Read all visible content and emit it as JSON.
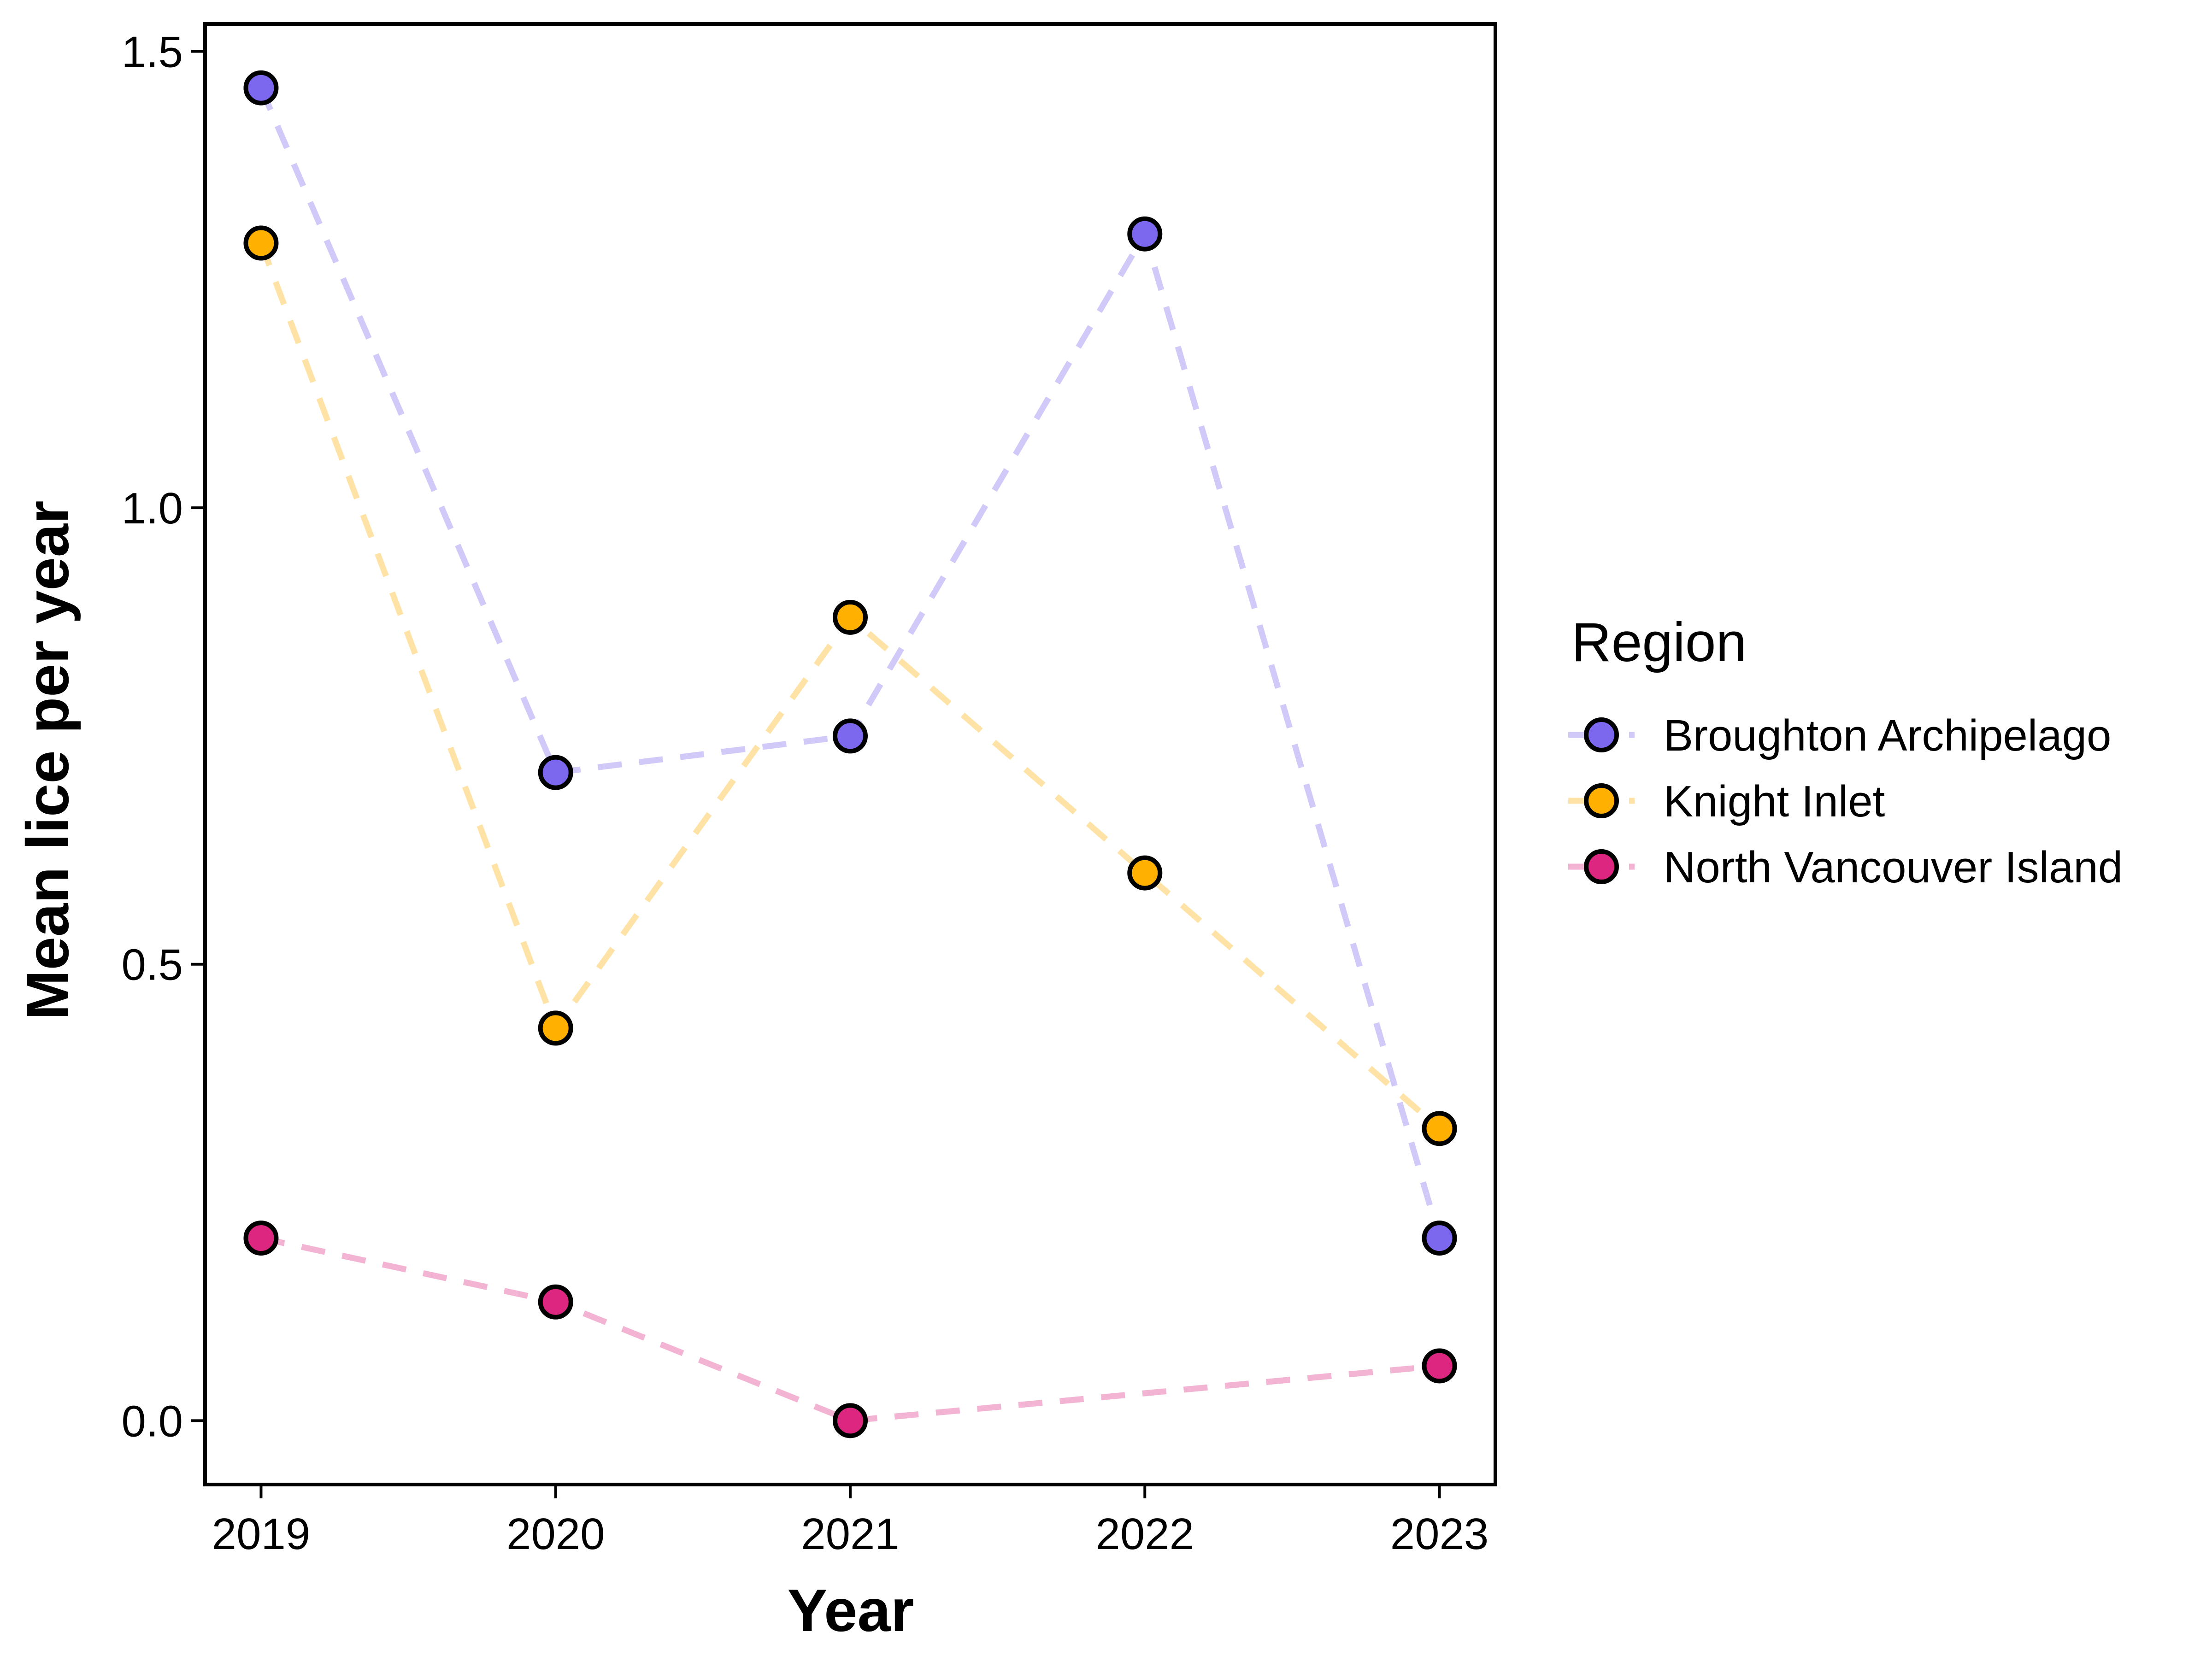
{
  "chart_data": {
    "type": "line",
    "xlabel": "Year",
    "ylabel": "Mean lice per year",
    "x": [
      2019,
      2020,
      2021,
      2022,
      2023
    ],
    "xticks": [
      "2019",
      "2020",
      "2021",
      "2022",
      "2023"
    ],
    "yticks": [
      "0.0",
      "0.5",
      "1.0",
      "1.5"
    ],
    "ylim": [
      -0.07,
      1.53
    ],
    "legend": {
      "title": "Region",
      "placement": "right"
    },
    "line_style": "dashed",
    "markers": "circle",
    "series": [
      {
        "name": "Broughton Archipelago",
        "color": "#7B68EE",
        "values": [
          1.46,
          0.71,
          0.75,
          1.3,
          0.2
        ]
      },
      {
        "name": "Knight Inlet",
        "color": "#FFB000",
        "values": [
          1.29,
          0.43,
          0.88,
          0.6,
          0.32
        ]
      },
      {
        "name": "North Vancouver Island",
        "color": "#DC267F",
        "values": [
          0.2,
          0.13,
          0.0,
          null,
          0.06
        ]
      }
    ]
  }
}
